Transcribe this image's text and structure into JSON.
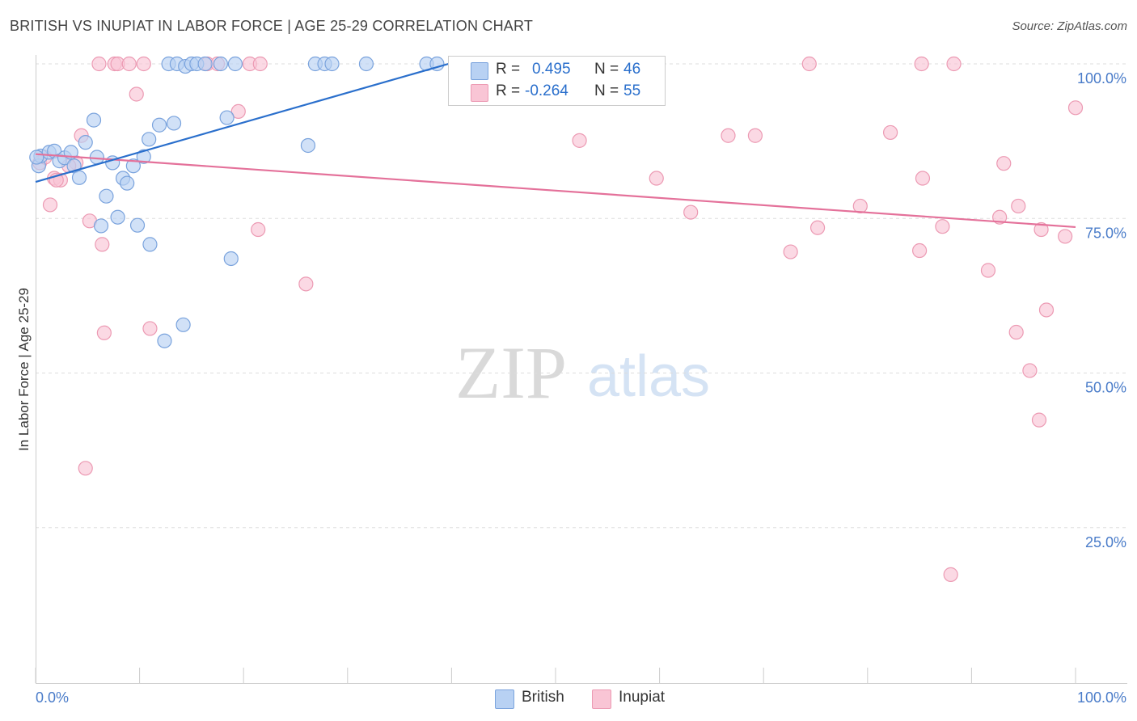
{
  "header": {
    "title": "BRITISH VS INUPIAT IN LABOR FORCE | AGE 25-29 CORRELATION CHART",
    "source": "Source: ZipAtlas.com"
  },
  "watermark": {
    "zip": "ZIP",
    "atlas": "atlas"
  },
  "legend": {
    "british": {
      "r_label": "R = ",
      "r_value": "0.495",
      "n_label": "N = ",
      "n_value": "46"
    },
    "inupiat": {
      "r_label": "R = ",
      "r_value": "-0.264",
      "n_label": "N = ",
      "n_value": "55"
    }
  },
  "colors": {
    "british_fill": "#b8d1f3",
    "british_stroke": "#7aa3dd",
    "british_line": "#2a6fcc",
    "inupiat_fill": "#f9c5d5",
    "inupiat_stroke": "#ec9ab3",
    "inupiat_line": "#e4719a",
    "tick_text": "#4a7cc9"
  },
  "chart_data": {
    "type": "scatter",
    "title": "BRITISH VS INUPIAT IN LABOR FORCE | AGE 25-29 CORRELATION CHART",
    "ylabel": "In Labor Force | Age 25-29",
    "xlabel": "",
    "xlim": [
      0,
      100
    ],
    "ylim": [
      0,
      100
    ],
    "x_ticks": [
      "0.0%",
      "100.0%"
    ],
    "y_ticks": [
      "25.0%",
      "50.0%",
      "75.0%",
      "100.0%"
    ],
    "y_tick_values": [
      25,
      50,
      75,
      100
    ],
    "grid": true,
    "legend_position": "top-center",
    "series": [
      {
        "name": "British",
        "r": 0.495,
        "n": 46,
        "trend": {
          "x": [
            0,
            39.7
          ],
          "y": [
            80.9,
            100
          ]
        },
        "points": [
          [
            0.3,
            83.5
          ],
          [
            0.5,
            85.1
          ],
          [
            1.3,
            85.7
          ],
          [
            1.8,
            85.9
          ],
          [
            2.3,
            84.3
          ],
          [
            2.8,
            84.8
          ],
          [
            3.4,
            85.7
          ],
          [
            3.7,
            83.5
          ],
          [
            4.2,
            81.6
          ],
          [
            4.8,
            87.3
          ],
          [
            5.6,
            90.9
          ],
          [
            5.9,
            84.9
          ],
          [
            6.3,
            73.8
          ],
          [
            6.8,
            78.6
          ],
          [
            7.4,
            84.0
          ],
          [
            7.9,
            75.2
          ],
          [
            8.4,
            81.5
          ],
          [
            8.8,
            80.7
          ],
          [
            9.4,
            83.5
          ],
          [
            9.8,
            73.9
          ],
          [
            10.4,
            85.0
          ],
          [
            10.9,
            87.8
          ],
          [
            11.0,
            70.8
          ],
          [
            11.9,
            90.1
          ],
          [
            12.4,
            55.2
          ],
          [
            13.3,
            90.4
          ],
          [
            14.2,
            57.8
          ],
          [
            18.4,
            91.3
          ],
          [
            18.8,
            68.5
          ],
          [
            26.2,
            86.8
          ],
          [
            12.8,
            100
          ],
          [
            13.6,
            100
          ],
          [
            14.4,
            99.6
          ],
          [
            15.0,
            100
          ],
          [
            15.5,
            100
          ],
          [
            16.3,
            100
          ],
          [
            17.8,
            100
          ],
          [
            19.2,
            100
          ],
          [
            26.9,
            100
          ],
          [
            27.8,
            100
          ],
          [
            28.5,
            100
          ],
          [
            31.8,
            100
          ],
          [
            37.6,
            100
          ],
          [
            38.6,
            100
          ],
          [
            47.3,
            100
          ],
          [
            0.1,
            84.9
          ]
        ]
      },
      {
        "name": "Inupiat",
        "r": -0.264,
        "n": 55,
        "trend": {
          "x": [
            0,
            100
          ],
          "y": [
            85.4,
            73.6
          ]
        },
        "points": [
          [
            0.4,
            84.0
          ],
          [
            1.4,
            77.2
          ],
          [
            1.8,
            81.5
          ],
          [
            2.4,
            81.2
          ],
          [
            3.9,
            84.0
          ],
          [
            4.4,
            88.4
          ],
          [
            5.2,
            74.6
          ],
          [
            6.4,
            70.8
          ],
          [
            6.6,
            56.5
          ],
          [
            4.8,
            34.6
          ],
          [
            9.7,
            95.1
          ],
          [
            11.0,
            57.2
          ],
          [
            19.5,
            92.3
          ],
          [
            21.4,
            73.2
          ],
          [
            26.0,
            64.4
          ],
          [
            6.1,
            100
          ],
          [
            7.6,
            100
          ],
          [
            7.9,
            100
          ],
          [
            9.0,
            100
          ],
          [
            10.4,
            100
          ],
          [
            16.5,
            100
          ],
          [
            17.5,
            100
          ],
          [
            20.6,
            100
          ],
          [
            21.6,
            100
          ],
          [
            59.7,
            100
          ],
          [
            74.4,
            100
          ],
          [
            85.2,
            100
          ],
          [
            88.3,
            100
          ],
          [
            52.3,
            87.6
          ],
          [
            59.7,
            81.5
          ],
          [
            63.0,
            76.0
          ],
          [
            66.6,
            88.4
          ],
          [
            69.2,
            88.4
          ],
          [
            72.6,
            69.6
          ],
          [
            75.2,
            73.5
          ],
          [
            79.3,
            77.0
          ],
          [
            82.2,
            88.9
          ],
          [
            85.0,
            69.8
          ],
          [
            85.3,
            81.5
          ],
          [
            87.2,
            73.7
          ],
          [
            88.0,
            17.4
          ],
          [
            91.6,
            66.6
          ],
          [
            92.7,
            75.2
          ],
          [
            93.1,
            83.9
          ],
          [
            94.3,
            56.6
          ],
          [
            94.5,
            77.0
          ],
          [
            95.6,
            50.4
          ],
          [
            96.5,
            42.4
          ],
          [
            96.7,
            73.2
          ],
          [
            97.2,
            60.2
          ],
          [
            99.0,
            72.1
          ],
          [
            100.0,
            92.9
          ],
          [
            3.2,
            83.5
          ],
          [
            0.9,
            84.9
          ],
          [
            2.0,
            81.2
          ]
        ]
      }
    ]
  },
  "bottom_legend": {
    "british": "British",
    "inupiat": "Inupiat"
  }
}
